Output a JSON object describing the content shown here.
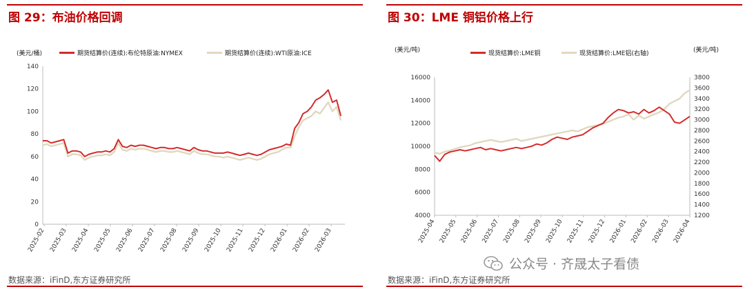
{
  "left": {
    "title": "图 29：布油价格回调",
    "unit": "(美元/桶)",
    "source": "数据来源：iFinD,东方证券研究所"
  },
  "right": {
    "title": "图 30：LME 铜铝价格上行",
    "unit_left": "(美元/吨)",
    "unit_right": "(美元/吨)",
    "source": "数据来源：iFinD,东方证券研究所"
  },
  "watermark": {
    "text": "公众号 · 齐晟太子看债",
    "icon": "wechat-icon"
  },
  "colors": {
    "brand_red": "#c00000",
    "series_red": "#d42a2a",
    "series_beige": "#e0d8bf"
  },
  "chart_data": [
    {
      "type": "line",
      "x_labels": [
        "2025-02",
        "2025-03",
        "2025-04",
        "2025-05",
        "2025-06",
        "2025-07",
        "2025-08",
        "2025-09",
        "2025-10",
        "2025-11",
        "2025-12",
        "2026-01",
        "2026-02",
        "2026-03"
      ],
      "y_ticks": [
        0,
        20,
        40,
        60,
        80,
        100,
        120,
        140
      ],
      "ylim": [
        0,
        140
      ],
      "series": [
        {
          "name": "期货结算价(连续):布伦特原油:NYMEX",
          "color": "#d42a2a",
          "values": [
            74,
            74,
            72,
            73,
            74,
            75,
            63,
            65,
            65,
            64,
            60,
            62,
            63,
            64,
            64,
            65,
            64,
            67,
            75,
            69,
            68,
            70,
            69,
            70,
            70,
            69,
            68,
            67,
            68,
            68,
            67,
            67,
            68,
            67,
            66,
            65,
            68,
            66,
            65,
            65,
            64,
            63,
            63,
            63,
            64,
            63,
            62,
            61,
            62,
            63,
            62,
            61,
            62,
            64,
            66,
            67,
            68,
            69,
            71,
            70,
            85,
            90,
            98,
            100,
            104,
            110,
            112,
            115,
            119,
            108,
            110,
            96
          ]
        },
        {
          "name": "期货结算价(连续):WTI原油:ICE",
          "color": "#e0d8bf",
          "values": [
            70,
            71,
            69,
            70,
            71,
            72,
            60,
            62,
            62,
            61,
            57,
            59,
            60,
            61,
            61,
            62,
            61,
            64,
            72,
            66,
            65,
            67,
            66,
            67,
            67,
            66,
            65,
            64,
            65,
            65,
            64,
            64,
            65,
            64,
            63,
            62,
            65,
            63,
            62,
            62,
            61,
            60,
            60,
            59,
            60,
            59,
            58,
            57,
            58,
            59,
            58,
            57,
            58,
            60,
            62,
            63,
            64,
            66,
            68,
            68,
            78,
            86,
            92,
            94,
            96,
            100,
            98,
            103,
            108,
            100,
            104,
            92
          ]
        }
      ]
    },
    {
      "type": "line",
      "x_labels": [
        "2025-04",
        "2025-05",
        "2025-06",
        "2025-07",
        "2025-08",
        "2025-09",
        "2025-10",
        "2025-11",
        "2025-12",
        "2026-01",
        "2026-02",
        "2026-03",
        "2026-04"
      ],
      "y_ticks_left": [
        4000,
        6000,
        8000,
        10000,
        12000,
        14000,
        16000
      ],
      "y_ticks_right": [
        1200,
        1400,
        1600,
        1800,
        2000,
        2200,
        2400,
        2600,
        2800,
        3000,
        3200,
        3400,
        3600,
        3800
      ],
      "ylim_left": [
        4000,
        16000
      ],
      "ylim_right": [
        1200,
        3800
      ],
      "series": [
        {
          "name": "现货结算价:LME铜",
          "axis": "left",
          "color": "#d42a2a",
          "values": [
            9200,
            8700,
            9300,
            9500,
            9600,
            9700,
            9600,
            9700,
            9800,
            9900,
            9700,
            9800,
            9700,
            9600,
            9700,
            9800,
            9900,
            9800,
            9900,
            10000,
            10200,
            10100,
            10300,
            10600,
            10800,
            10700,
            10600,
            10800,
            10900,
            11000,
            11300,
            11600,
            11800,
            12000,
            12500,
            12900,
            13200,
            13100,
            12900,
            13000,
            12800,
            13200,
            12900,
            13100,
            13400,
            13100,
            12800,
            12100,
            12000,
            12300,
            12600
          ]
        },
        {
          "name": "现货结算价:LME铝(右轴)",
          "axis": "right",
          "color": "#e0d8bf",
          "values": [
            2380,
            2360,
            2400,
            2420,
            2450,
            2480,
            2500,
            2520,
            2560,
            2580,
            2600,
            2620,
            2600,
            2580,
            2600,
            2620,
            2640,
            2600,
            2620,
            2640,
            2660,
            2680,
            2700,
            2720,
            2740,
            2760,
            2780,
            2800,
            2780,
            2820,
            2860,
            2880,
            2900,
            2920,
            2960,
            3000,
            3040,
            3060,
            3100,
            3000,
            3080,
            3020,
            3060,
            3100,
            3140,
            3200,
            3300,
            3350,
            3400,
            3500,
            3560
          ]
        }
      ]
    }
  ]
}
